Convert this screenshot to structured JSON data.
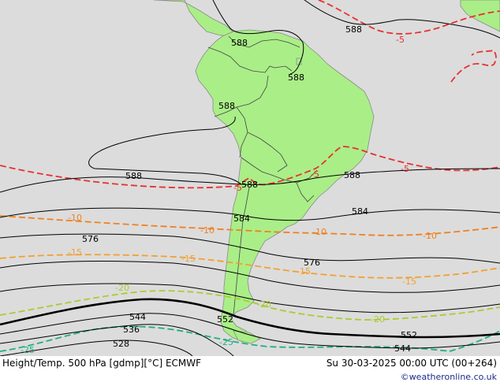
{
  "footer": {
    "title": "Height/Temp. 500 hPa [gdmp][°C] ECMWF",
    "valid_time": "Su 30-03-2025 00:00 UTC (00+264)",
    "credit": "©weatheronline.co.uk"
  },
  "map": {
    "ocean_color": "#dcdcdc",
    "land_color": "#aaee88",
    "height_contours": [
      "588",
      "584",
      "576",
      "552",
      "544",
      "536",
      "528"
    ],
    "temperature_isotherms": [
      "-5",
      "-10",
      "-15",
      "-20",
      "-25"
    ],
    "labels": {
      "h588_a": "588",
      "h588_b": "588",
      "h588_c": "588",
      "h588_d": "588",
      "h588_e": "588",
      "h588_f": "588",
      "h588_g": "588",
      "h584_a": "584",
      "h584_b": "584",
      "h576_a": "576",
      "h576_b": "576",
      "h552_a": "552",
      "h552_b": "552",
      "h544_a": "544",
      "h544_b": "544",
      "h536": "536",
      "h528": "528",
      "t5_a": "-5",
      "t5_b": "-5",
      "t5_c": "-5",
      "t5_d": "-5",
      "t10_a": "-10",
      "t10_b": "-10",
      "t10_c": "-10",
      "t10_d": "-10",
      "t15_a": "-15",
      "t15_b": "-15",
      "t15_c": "-15",
      "t15_d": "-15",
      "t20_a": "-20",
      "t20_b": "-20",
      "t20_c": "-20",
      "t25_a": "-25",
      "t25_b": "-25"
    }
  }
}
